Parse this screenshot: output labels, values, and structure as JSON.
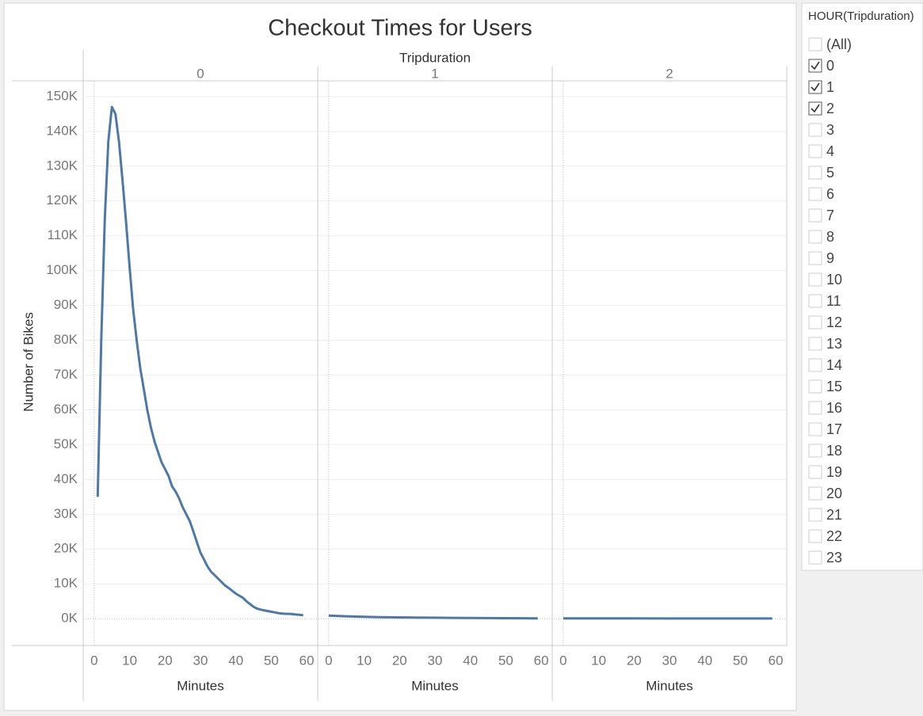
{
  "chart_data": {
    "type": "line",
    "title": "Checkout Times for Users",
    "facet_label": "Tripduration",
    "xlabel": "Minutes",
    "ylabel": "Number of Bikes",
    "color": "#4e79a7",
    "grid": true,
    "xlim": [
      -3.1,
      63.1
    ],
    "xticks": [
      0,
      10,
      20,
      30,
      40,
      50,
      60
    ],
    "ylim": [
      -7700,
      154300
    ],
    "yticks": [
      {
        "value": 0,
        "label": "0K"
      },
      {
        "value": 10000,
        "label": "10K"
      },
      {
        "value": 20000,
        "label": "20K"
      },
      {
        "value": 30000,
        "label": "30K"
      },
      {
        "value": 40000,
        "label": "40K"
      },
      {
        "value": 50000,
        "label": "50K"
      },
      {
        "value": 60000,
        "label": "60K"
      },
      {
        "value": 70000,
        "label": "70K"
      },
      {
        "value": 80000,
        "label": "80K"
      },
      {
        "value": 90000,
        "label": "90K"
      },
      {
        "value": 100000,
        "label": "100K"
      },
      {
        "value": 110000,
        "label": "110K"
      },
      {
        "value": 120000,
        "label": "120K"
      },
      {
        "value": 130000,
        "label": "130K"
      },
      {
        "value": 140000,
        "label": "140K"
      },
      {
        "value": 150000,
        "label": "150K"
      }
    ],
    "panels": [
      {
        "label": "0",
        "x": [
          1,
          2,
          3,
          4,
          5,
          6,
          7,
          8,
          9,
          10,
          11,
          12,
          13,
          14,
          15,
          16,
          17,
          18,
          19,
          20,
          21,
          22,
          23,
          24,
          25,
          26,
          27,
          28,
          29,
          30,
          31,
          32,
          33,
          34,
          35,
          36,
          37,
          38,
          39,
          40,
          41,
          42,
          43,
          44,
          45,
          46,
          47,
          48,
          49,
          50,
          51,
          52,
          53,
          54,
          55,
          56,
          57,
          58,
          59
        ],
        "values": [
          35000,
          80000,
          115000,
          137000,
          147000,
          145000,
          137000,
          126000,
          114000,
          101000,
          89000,
          80000,
          72000,
          66000,
          60000,
          55000,
          51000,
          48000,
          45000,
          43000,
          41000,
          38000,
          36500,
          34500,
          32000,
          30000,
          28000,
          25000,
          22000,
          19000,
          17000,
          15000,
          13500,
          12500,
          11500,
          10500,
          9500,
          8800,
          8000,
          7200,
          6600,
          6000,
          5000,
          4200,
          3400,
          2900,
          2600,
          2400,
          2200,
          2000,
          1800,
          1600,
          1500,
          1400,
          1400,
          1300,
          1200,
          1100,
          1000
        ]
      },
      {
        "label": "1",
        "x": [
          0,
          5,
          10,
          15,
          20,
          25,
          30,
          35,
          40,
          45,
          50,
          55,
          59
        ],
        "values": [
          900,
          700,
          550,
          450,
          380,
          320,
          280,
          240,
          200,
          170,
          150,
          120,
          100
        ]
      },
      {
        "label": "2",
        "x": [
          0,
          10,
          20,
          30,
          40,
          50,
          59
        ],
        "values": [
          100,
          90,
          80,
          70,
          60,
          55,
          50
        ]
      }
    ]
  },
  "filter": {
    "title": "HOUR(Tripduration)",
    "items": [
      {
        "label": "(All)",
        "checked": false
      },
      {
        "label": "0",
        "checked": true
      },
      {
        "label": "1",
        "checked": true
      },
      {
        "label": "2",
        "checked": true
      },
      {
        "label": "3",
        "checked": false
      },
      {
        "label": "4",
        "checked": false
      },
      {
        "label": "5",
        "checked": false
      },
      {
        "label": "6",
        "checked": false
      },
      {
        "label": "7",
        "checked": false
      },
      {
        "label": "8",
        "checked": false
      },
      {
        "label": "9",
        "checked": false
      },
      {
        "label": "10",
        "checked": false
      },
      {
        "label": "11",
        "checked": false
      },
      {
        "label": "12",
        "checked": false
      },
      {
        "label": "13",
        "checked": false
      },
      {
        "label": "14",
        "checked": false
      },
      {
        "label": "15",
        "checked": false
      },
      {
        "label": "16",
        "checked": false
      },
      {
        "label": "17",
        "checked": false
      },
      {
        "label": "18",
        "checked": false
      },
      {
        "label": "19",
        "checked": false
      },
      {
        "label": "20",
        "checked": false
      },
      {
        "label": "21",
        "checked": false
      },
      {
        "label": "22",
        "checked": false
      },
      {
        "label": "23",
        "checked": false
      }
    ]
  }
}
